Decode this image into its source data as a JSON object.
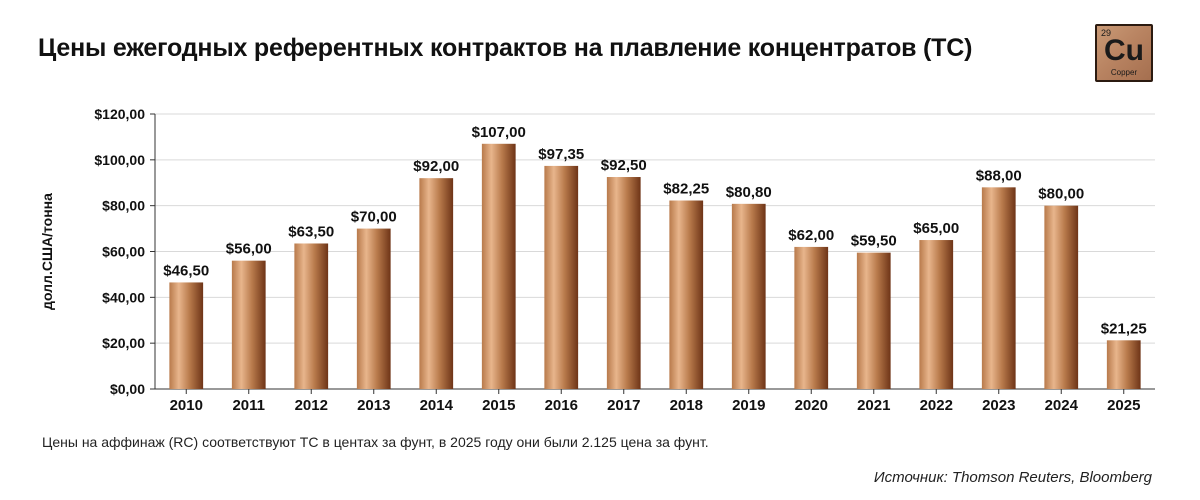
{
  "title": "Цены ежегодных референтных контрактов на плавление концентратов (TC)",
  "element_badge": {
    "number": "29",
    "symbol": "Cu",
    "name": "Copper"
  },
  "note": "Цены на аффинаж (RC) соответствуют TC в центах за фунт, в 2025 году они были 2.125 цена за фунт.",
  "source": "Источник: Thomson Reuters, Bloomberg",
  "colors": {
    "bar_light": "#e8b58c",
    "bar_mid": "#b87a4b",
    "bar_dark": "#6e3417",
    "grid": "#d9d9d9",
    "axis": "#333333",
    "text": "#111111"
  },
  "chart_data": {
    "type": "bar",
    "ylabel": "долл.США/тонна",
    "ylim": [
      0,
      120
    ],
    "yticks": [
      0,
      20,
      40,
      60,
      80,
      100,
      120
    ],
    "ytick_labels": [
      "$0,00",
      "$20,00",
      "$40,00",
      "$60,00",
      "$80,00",
      "$100,00",
      "$120,00"
    ],
    "grid": true,
    "categories": [
      "2010",
      "2011",
      "2012",
      "2013",
      "2014",
      "2015",
      "2016",
      "2017",
      "2018",
      "2019",
      "2020",
      "2021",
      "2022",
      "2023",
      "2024",
      "2025"
    ],
    "values": [
      46.5,
      56,
      63.5,
      70,
      92,
      107,
      97.35,
      92.5,
      82.25,
      80.8,
      62,
      59.5,
      65,
      88,
      80,
      21.25
    ],
    "value_labels": [
      "$46,50",
      "$56,00",
      "$63,50",
      "$70,00",
      "$92,00",
      "$107,00",
      "$97,35",
      "$92,50",
      "$82,25",
      "$80,80",
      "$62,00",
      "$59,50",
      "$65,00",
      "$88,00",
      "$80,00",
      "$21,25"
    ]
  }
}
